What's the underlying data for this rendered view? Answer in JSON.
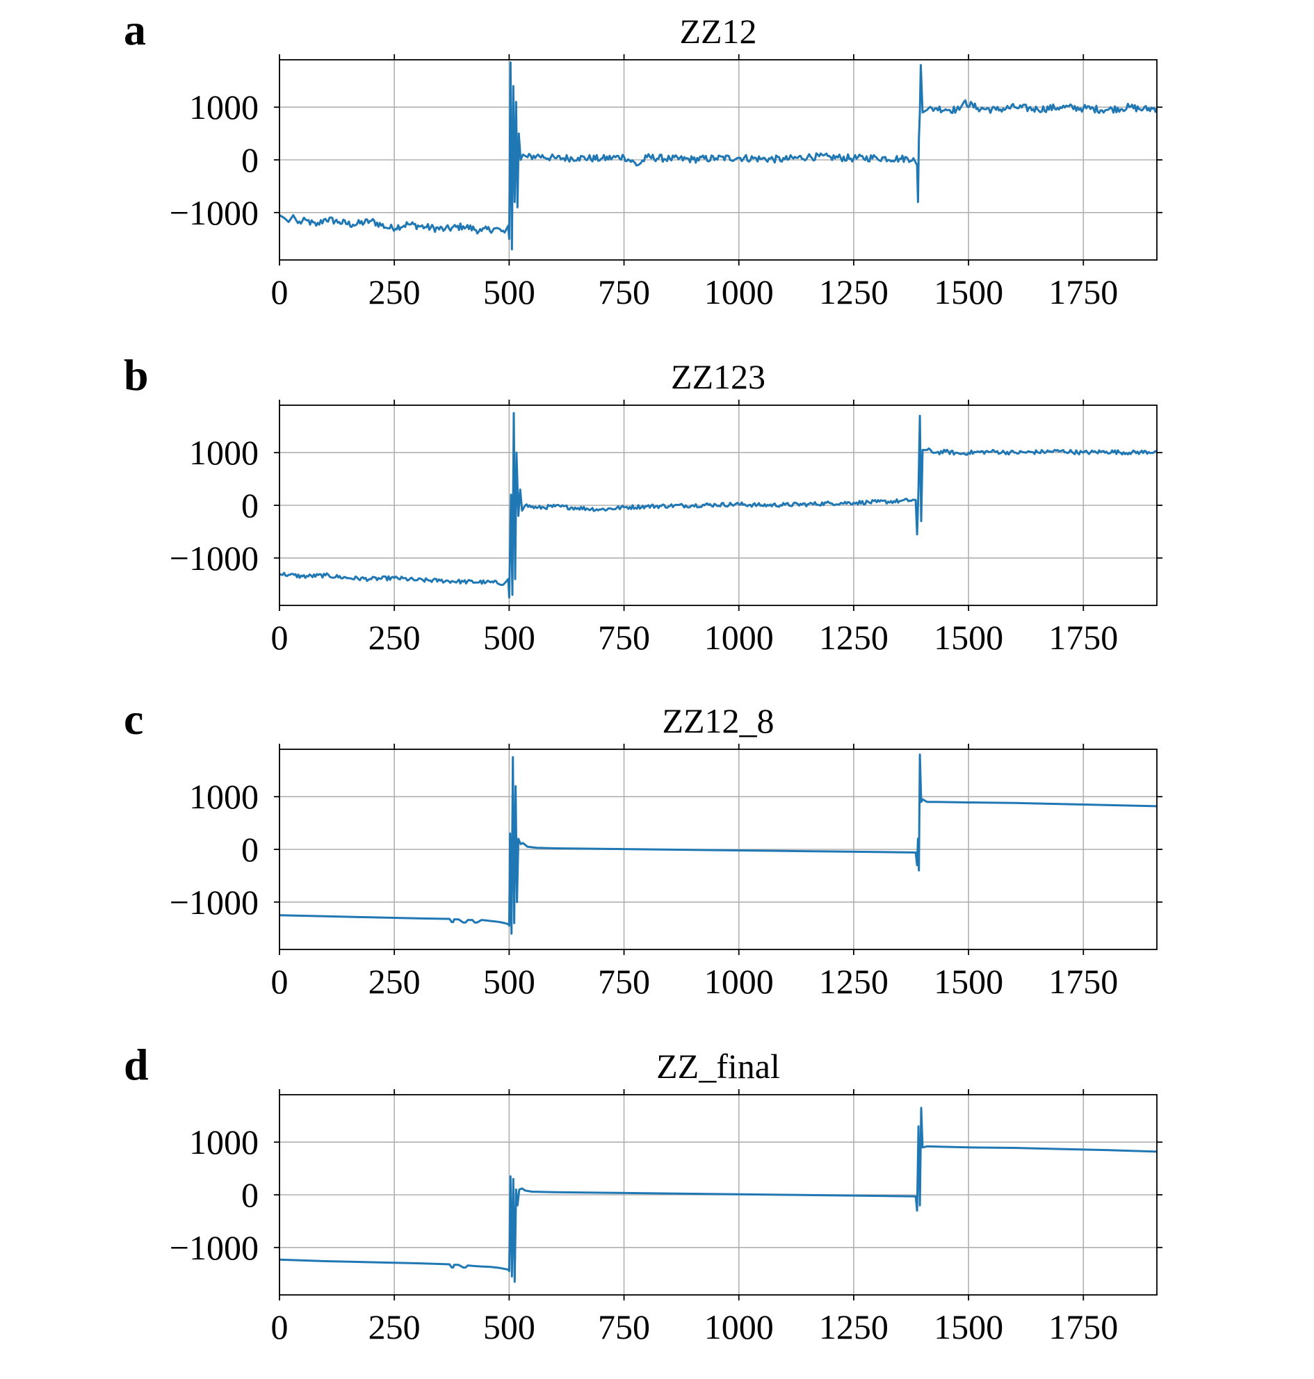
{
  "figure": {
    "panels": [
      {
        "letter": "a",
        "title": "ZZ12"
      },
      {
        "letter": "b",
        "title": "ZZ123"
      },
      {
        "letter": "c",
        "title": "ZZ12_8"
      },
      {
        "letter": "d",
        "title": "ZZ_final"
      }
    ]
  },
  "chart_data": [
    {
      "type": "line",
      "title": "ZZ12",
      "xlabel": "",
      "ylabel": "",
      "xlim": [
        0,
        1910
      ],
      "ylim": [
        -1900,
        1900
      ],
      "xticks": [
        0,
        250,
        500,
        750,
        1000,
        1250,
        1500,
        1750
      ],
      "xtick_labels": [
        "0",
        "250",
        "500",
        "750",
        "1000",
        "1250",
        "1500",
        "1750"
      ],
      "yticks": [
        -1000,
        0,
        1000
      ],
      "ytick_labels": [
        "−1000",
        "0",
        "1000"
      ],
      "grid": true,
      "color": "#1f77b4",
      "series": [
        {
          "x": [
            0,
            10,
            20,
            30,
            40,
            60,
            80,
            100,
            130,
            160,
            200,
            240,
            280,
            320,
            360,
            400,
            440,
            470,
            490,
            498,
            500,
            503,
            506,
            509,
            512,
            515,
            518,
            521,
            525,
            530,
            540,
            560,
            600,
            650,
            700,
            750,
            780,
            800,
            850,
            900,
            950,
            1000,
            1050,
            1100,
            1150,
            1200,
            1250,
            1300,
            1350,
            1380,
            1388,
            1390,
            1392,
            1394,
            1396,
            1400,
            1410,
            1430,
            1450,
            1480,
            1490,
            1520,
            1560,
            1600,
            1650,
            1700,
            1750,
            1800,
            1850,
            1880,
            1910
          ],
          "y": [
            -1050,
            -1100,
            -1180,
            -1050,
            -1200,
            -1150,
            -1250,
            -1120,
            -1180,
            -1230,
            -1160,
            -1300,
            -1220,
            -1280,
            -1320,
            -1260,
            -1350,
            -1300,
            -1380,
            -1250,
            -1500,
            1850,
            -1700,
            1400,
            -800,
            1100,
            -900,
            500,
            0,
            100,
            50,
            80,
            30,
            40,
            20,
            60,
            -100,
            50,
            20,
            10,
            30,
            40,
            20,
            10,
            60,
            50,
            30,
            40,
            20,
            30,
            -100,
            -800,
            400,
            900,
            1800,
            900,
            950,
            980,
            960,
            950,
            1100,
            980,
            950,
            1000,
            960,
            1000,
            980,
            950,
            1000,
            960,
            980
          ],
          "noise": 70
        }
      ]
    },
    {
      "type": "line",
      "title": "ZZ123",
      "xlabel": "",
      "ylabel": "",
      "xlim": [
        0,
        1910
      ],
      "ylim": [
        -1900,
        1900
      ],
      "xticks": [
        0,
        250,
        500,
        750,
        1000,
        1250,
        1500,
        1750
      ],
      "xtick_labels": [
        "0",
        "250",
        "500",
        "750",
        "1000",
        "1250",
        "1500",
        "1750"
      ],
      "yticks": [
        -1000,
        0,
        1000
      ],
      "ytick_labels": [
        "−1000",
        "0",
        "1000"
      ],
      "grid": true,
      "color": "#1f77b4",
      "series": [
        {
          "x": [
            0,
            20,
            50,
            100,
            150,
            200,
            250,
            300,
            350,
            400,
            450,
            490,
            498,
            500,
            504,
            507,
            510,
            513,
            516,
            520,
            524,
            528,
            535,
            560,
            600,
            650,
            700,
            750,
            800,
            850,
            900,
            950,
            1000,
            1050,
            1100,
            1150,
            1200,
            1250,
            1300,
            1350,
            1385,
            1388,
            1391,
            1394,
            1397,
            1400,
            1410,
            1430,
            1450,
            1480,
            1500,
            1550,
            1600,
            1650,
            1700,
            1750,
            1800,
            1850,
            1910
          ],
          "y": [
            -1300,
            -1320,
            -1350,
            -1330,
            -1380,
            -1400,
            -1380,
            -1420,
            -1430,
            -1450,
            -1460,
            -1480,
            -1400,
            -1750,
            200,
            -1700,
            1750,
            -1400,
            1000,
            -200,
            300,
            -100,
            0,
            -50,
            -20,
            -50,
            -80,
            -40,
            -20,
            -10,
            0,
            10,
            20,
            0,
            10,
            20,
            40,
            50,
            60,
            80,
            100,
            -550,
            300,
            1700,
            -300,
            1050,
            1050,
            1000,
            1020,
            980,
            1000,
            1020,
            1000,
            1010,
            1030,
            1000,
            1020,
            1000,
            1020
          ],
          "noise": 40
        }
      ]
    },
    {
      "type": "line",
      "title": "ZZ12_8",
      "xlabel": "",
      "ylabel": "",
      "xlim": [
        0,
        1910
      ],
      "ylim": [
        -1900,
        1900
      ],
      "xticks": [
        0,
        250,
        500,
        750,
        1000,
        1250,
        1500,
        1750
      ],
      "xtick_labels": [
        "0",
        "250",
        "500",
        "750",
        "1000",
        "1250",
        "1500",
        "1750"
      ],
      "yticks": [
        -1000,
        0,
        1000
      ],
      "ytick_labels": [
        "−1000",
        "0",
        "1000"
      ],
      "grid": true,
      "color": "#1f77b4",
      "series": [
        {
          "x": [
            0,
            100,
            200,
            300,
            370,
            375,
            378,
            380,
            390,
            400,
            405,
            410,
            420,
            425,
            430,
            440,
            450,
            460,
            470,
            480,
            490,
            498,
            500,
            502,
            505,
            508,
            511,
            514,
            517,
            520,
            525,
            530,
            540,
            560,
            600,
            700,
            800,
            900,
            1000,
            1100,
            1200,
            1300,
            1385,
            1388,
            1390,
            1392,
            1394,
            1397,
            1400,
            1410,
            1430,
            1500,
            1600,
            1700,
            1800,
            1910
          ],
          "y": [
            -1250,
            -1270,
            -1290,
            -1310,
            -1320,
            -1380,
            -1380,
            -1330,
            -1330,
            -1390,
            -1390,
            -1340,
            -1340,
            -1390,
            -1390,
            -1340,
            -1350,
            -1360,
            -1370,
            -1380,
            -1400,
            -1420,
            -1450,
            300,
            -1600,
            1750,
            -1400,
            1200,
            -1000,
            200,
            100,
            120,
            50,
            30,
            20,
            10,
            0,
            -10,
            -20,
            -30,
            -40,
            -50,
            -60,
            -300,
            200,
            -400,
            1800,
            900,
            950,
            900,
            900,
            890,
            880,
            860,
            840,
            820
          ],
          "noise": 0
        }
      ]
    },
    {
      "type": "line",
      "title": "ZZ_final",
      "xlabel": "",
      "ylabel": "",
      "xlim": [
        0,
        1910
      ],
      "ylim": [
        -1900,
        1900
      ],
      "xticks": [
        0,
        250,
        500,
        750,
        1000,
        1250,
        1500,
        1750
      ],
      "xtick_labels": [
        "0",
        "250",
        "500",
        "750",
        "1000",
        "1250",
        "1500",
        "1750"
      ],
      "yticks": [
        -1000,
        0,
        1000
      ],
      "ytick_labels": [
        "−1000",
        "0",
        "1000"
      ],
      "grid": true,
      "color": "#1f77b4",
      "series": [
        {
          "x": [
            0,
            100,
            200,
            300,
            370,
            375,
            378,
            380,
            390,
            400,
            405,
            410,
            420,
            440,
            460,
            480,
            498,
            500,
            503,
            506,
            509,
            512,
            515,
            518,
            522,
            528,
            535,
            550,
            600,
            700,
            800,
            900,
            1000,
            1100,
            1200,
            1300,
            1385,
            1388,
            1391,
            1394,
            1397,
            1400,
            1410,
            1450,
            1500,
            1600,
            1700,
            1800,
            1910
          ],
          "y": [
            -1230,
            -1260,
            -1280,
            -1300,
            -1320,
            -1380,
            -1380,
            -1330,
            -1330,
            -1380,
            -1380,
            -1340,
            -1350,
            -1360,
            -1370,
            -1390,
            -1420,
            -1450,
            350,
            -1550,
            300,
            -1650,
            100,
            -200,
            100,
            120,
            80,
            60,
            50,
            40,
            30,
            20,
            10,
            0,
            -10,
            -20,
            -30,
            -300,
            1300,
            -200,
            1650,
            900,
            920,
            910,
            900,
            890,
            870,
            850,
            820
          ],
          "noise": 0
        }
      ]
    }
  ]
}
